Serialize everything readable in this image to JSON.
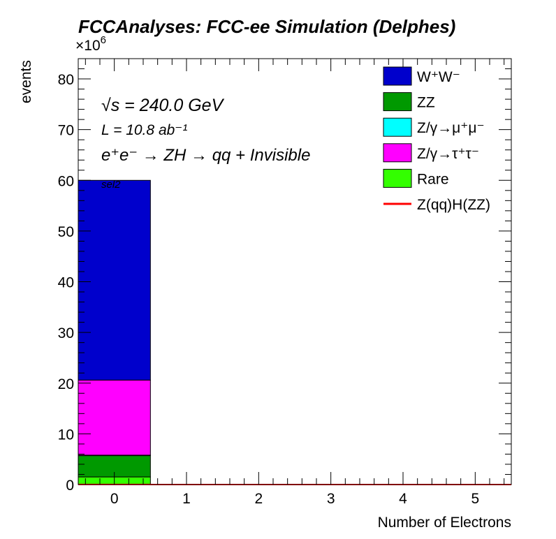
{
  "chart_data": {
    "type": "bar",
    "stacked": true,
    "title": "FCCAnalyses: FCC-ee Simulation (Delphes)",
    "xlabel": "Number of Electrons",
    "ylabel": "events",
    "y_multiplier": "×10",
    "y_multiplier_exp": "6",
    "xlim": [
      -0.5,
      5.5
    ],
    "ylim": [
      0,
      84
    ],
    "x_ticks": [
      "0",
      "1",
      "2",
      "3",
      "4",
      "5"
    ],
    "y_ticks": [
      "0",
      "10",
      "20",
      "30",
      "40",
      "50",
      "60",
      "70",
      "80"
    ],
    "categories": [
      0,
      1,
      2,
      3,
      4,
      5
    ],
    "series": [
      {
        "name": "Rare",
        "color": "#33ff00",
        "values": [
          1.5,
          0,
          0,
          0,
          0,
          0
        ]
      },
      {
        "name": "ZZ",
        "color": "#009900",
        "values": [
          4.2,
          0,
          0,
          0,
          0,
          0
        ]
      },
      {
        "name": "Z/γ→μ⁺μ⁻",
        "color": "#00ffff",
        "values": [
          0.1,
          0,
          0,
          0,
          0,
          0
        ]
      },
      {
        "name": "Z/γ→τ⁺τ⁻",
        "color": "#ff00ff",
        "values": [
          14.8,
          0,
          0,
          0,
          0,
          0
        ]
      },
      {
        "name": "W⁺W⁻",
        "color": "#0000cc",
        "values": [
          39.4,
          0,
          0,
          0,
          0,
          0
        ]
      }
    ],
    "signal": {
      "name": "Z(qq)H(ZZ)",
      "color": "#ff0000",
      "values": [
        0.02,
        0,
        0,
        0,
        0,
        0
      ]
    },
    "legend_order": [
      "W⁺W⁻",
      "ZZ",
      "Z/γ→μ⁺μ⁻",
      "Z/γ→τ⁺τ⁻",
      "Rare",
      "Z(qq)H(ZZ)"
    ],
    "legend_placement": "top-right",
    "grid": false,
    "annotations": {
      "energy": "√s = 240.0 GeV",
      "lumi": "L = 10.8 ab⁻¹",
      "process": "e⁺e⁻ → ZH → qq + Invisible",
      "selection": "sel2"
    }
  }
}
